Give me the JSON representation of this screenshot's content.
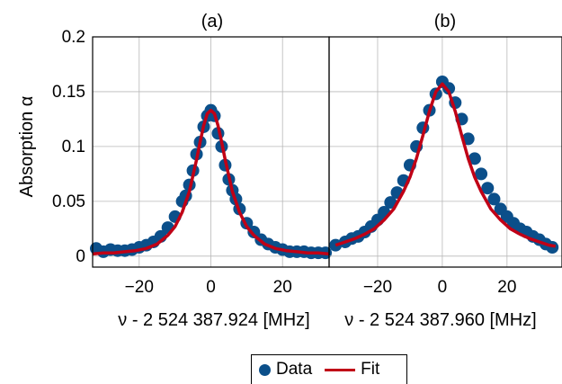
{
  "chart_data": [
    {
      "type": "scatter",
      "title": "(a)",
      "xlabel": "ν - 2 524 387.924 [MHz]",
      "ylabel": "Absorption α",
      "xlim": [
        -33,
        33
      ],
      "ylim": [
        -0.01,
        0.2
      ],
      "xticks": [
        "−20",
        "0",
        "20"
      ],
      "xtick_values": [
        -20,
        0,
        20
      ],
      "yticks": [
        "0",
        "0.05",
        "0.1",
        "0.15",
        "0.2"
      ],
      "ytick_values": [
        0,
        0.05,
        0.1,
        0.15,
        0.2
      ],
      "grid": true,
      "series": [
        {
          "name": "Data",
          "kind": "scatter",
          "x": [
            -32,
            -30,
            -28,
            -26,
            -24,
            -22,
            -20,
            -18,
            -16,
            -14,
            -12,
            -10,
            -8,
            -7,
            -6,
            -5,
            -4,
            -3,
            -2,
            -1,
            0,
            1,
            2,
            3,
            4,
            5,
            6,
            7,
            8,
            10,
            12,
            14,
            16,
            18,
            20,
            22,
            24,
            26,
            28,
            30,
            32
          ],
          "y": [
            0.007,
            0.004,
            0.006,
            0.005,
            0.005,
            0.006,
            0.008,
            0.01,
            0.013,
            0.018,
            0.026,
            0.036,
            0.05,
            0.055,
            0.065,
            0.078,
            0.093,
            0.104,
            0.118,
            0.128,
            0.133,
            0.128,
            0.112,
            0.1,
            0.083,
            0.07,
            0.06,
            0.052,
            0.043,
            0.03,
            0.022,
            0.015,
            0.011,
            0.008,
            0.006,
            0.004,
            0.004,
            0.004,
            0.003,
            0.003,
            0.003
          ]
        },
        {
          "name": "Fit",
          "kind": "line",
          "x": [
            -33,
            -30,
            -27,
            -24,
            -21,
            -18,
            -15,
            -12,
            -10,
            -8,
            -6,
            -4,
            -3,
            -2,
            -1,
            0,
            1,
            2,
            3,
            4,
            6,
            8,
            10,
            12,
            15,
            18,
            21,
            24,
            27,
            30,
            33
          ],
          "y": [
            0.002,
            0.003,
            0.003,
            0.004,
            0.005,
            0.007,
            0.011,
            0.019,
            0.027,
            0.04,
            0.059,
            0.088,
            0.104,
            0.119,
            0.13,
            0.133,
            0.13,
            0.119,
            0.104,
            0.088,
            0.059,
            0.04,
            0.027,
            0.019,
            0.011,
            0.007,
            0.005,
            0.004,
            0.003,
            0.003,
            0.002
          ]
        }
      ]
    },
    {
      "type": "scatter",
      "title": "(b)",
      "xlabel": "ν - 2 524 387.960 [MHz]",
      "ylabel": "",
      "xlim": [
        -35,
        37
      ],
      "ylim": [
        -0.01,
        0.2
      ],
      "xticks": [
        "−20",
        "0",
        "20"
      ],
      "xtick_values": [
        -20,
        0,
        20
      ],
      "grid": true,
      "series": [
        {
          "name": "Data",
          "kind": "scatter",
          "x": [
            -33,
            -30,
            -28,
            -26,
            -24,
            -22,
            -20,
            -18,
            -16,
            -14,
            -12,
            -10,
            -8,
            -6,
            -4,
            -2,
            0,
            2,
            4,
            6,
            8,
            10,
            12,
            14,
            16,
            18,
            20,
            22,
            24,
            26,
            28,
            30,
            32,
            34
          ],
          "y": [
            0.01,
            0.013,
            0.016,
            0.018,
            0.022,
            0.027,
            0.033,
            0.04,
            0.049,
            0.058,
            0.069,
            0.083,
            0.1,
            0.117,
            0.133,
            0.148,
            0.159,
            0.153,
            0.14,
            0.125,
            0.107,
            0.089,
            0.075,
            0.062,
            0.052,
            0.043,
            0.036,
            0.03,
            0.025,
            0.022,
            0.018,
            0.015,
            0.011,
            0.008
          ]
        },
        {
          "name": "Fit",
          "kind": "line",
          "x": [
            -33,
            -30,
            -27,
            -24,
            -21,
            -18,
            -15,
            -12,
            -10,
            -8,
            -6,
            -4,
            -2,
            0,
            2,
            4,
            6,
            8,
            10,
            12,
            15,
            18,
            21,
            24,
            27,
            30,
            33,
            35
          ],
          "y": [
            0.01,
            0.013,
            0.016,
            0.02,
            0.025,
            0.033,
            0.043,
            0.059,
            0.072,
            0.089,
            0.11,
            0.132,
            0.15,
            0.157,
            0.15,
            0.132,
            0.11,
            0.089,
            0.072,
            0.059,
            0.043,
            0.033,
            0.025,
            0.02,
            0.016,
            0.013,
            0.01,
            0.009
          ]
        }
      ]
    }
  ],
  "legend": {
    "items": [
      {
        "label": "Data",
        "color": "#0b4f8a"
      },
      {
        "label": "Fit",
        "color": "#c00016"
      }
    ]
  },
  "colors": {
    "data": "#0b4f8a",
    "fit": "#c00016",
    "grid": "#b8b8b8"
  }
}
